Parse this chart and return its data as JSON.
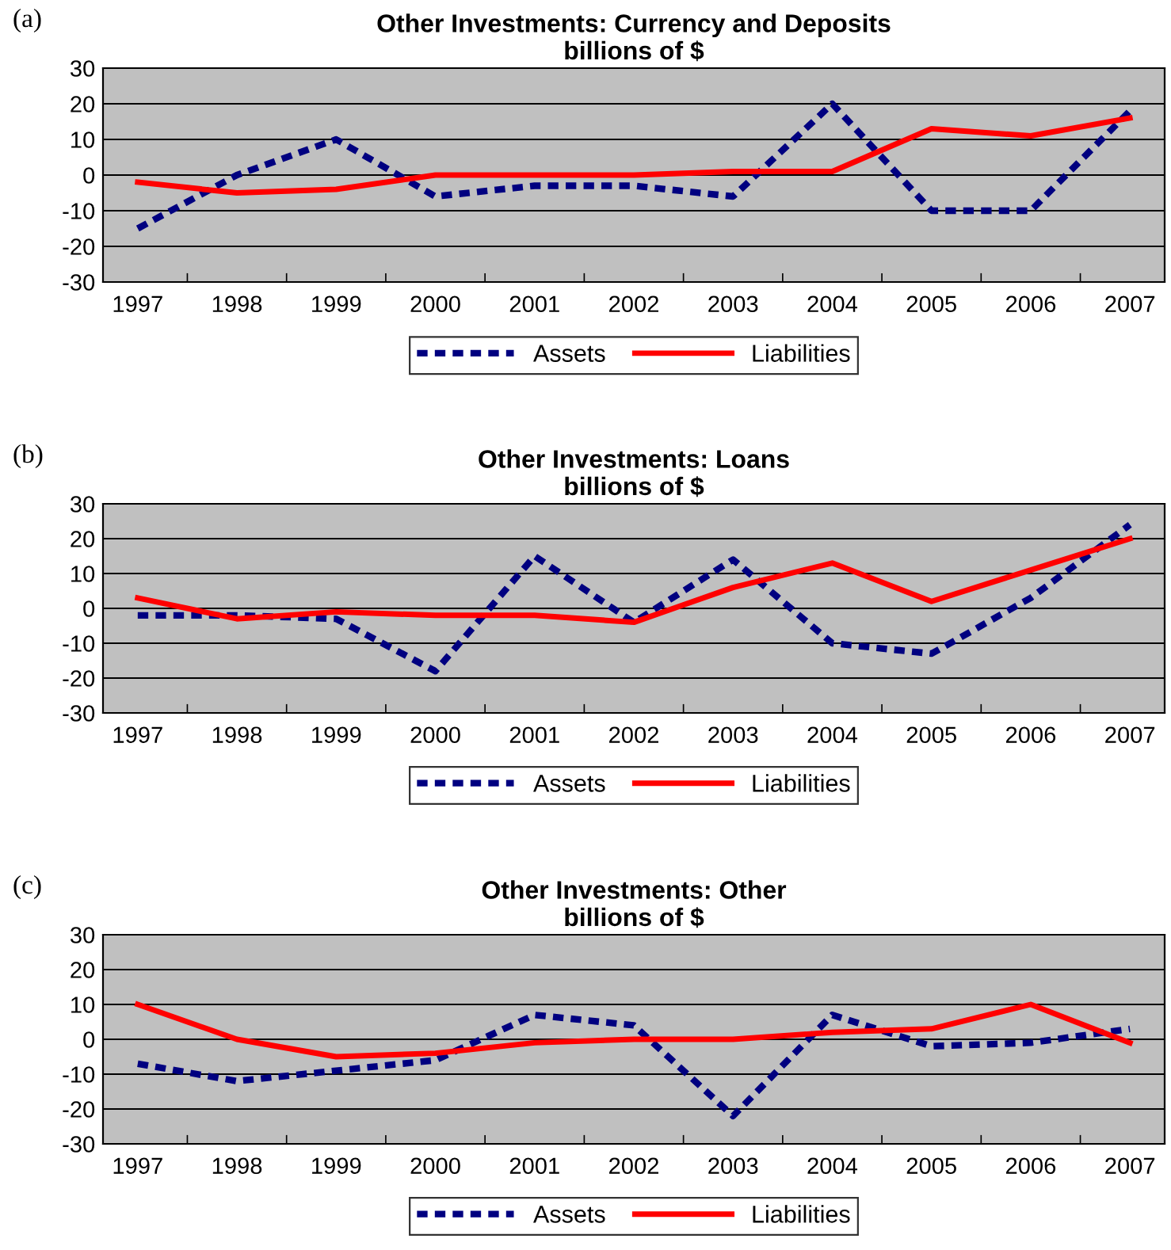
{
  "chart_data": [
    {
      "type": "line",
      "title": "Other Investments: Currency and Deposits\nbillions of $",
      "annotations": [
        "(a)"
      ],
      "categories": [
        "1997",
        "1998",
        "1999",
        "2000",
        "2001",
        "2002",
        "2003",
        "2004",
        "2005",
        "2006",
        "2007"
      ],
      "ylim": [
        -30,
        30
      ],
      "yticks": [
        -30,
        -20,
        -10,
        0,
        10,
        20,
        30
      ],
      "grid": "y",
      "legend": "bottom",
      "marker": "none",
      "series": [
        {
          "name": "Assets",
          "color": "#000080",
          "line_style": "dashed",
          "values": [
            -15,
            0,
            10,
            -6,
            -3,
            -3,
            -6,
            20,
            -10,
            -10,
            18
          ]
        },
        {
          "name": "Liabilities",
          "color": "#ff0000",
          "line_style": "solid",
          "values": [
            -2,
            -5,
            -4,
            0,
            0,
            0,
            1,
            1,
            13,
            11,
            16
          ]
        }
      ]
    },
    {
      "type": "line",
      "title": "Other Investments: Loans\nbillions of $",
      "annotations": [
        "(b)"
      ],
      "categories": [
        "1997",
        "1998",
        "1999",
        "2000",
        "2001",
        "2002",
        "2003",
        "2004",
        "2005",
        "2006",
        "2007"
      ],
      "ylim": [
        -30,
        30
      ],
      "yticks": [
        -30,
        -20,
        -10,
        0,
        10,
        20,
        30
      ],
      "grid": "y",
      "legend": "bottom",
      "marker": "none",
      "series": [
        {
          "name": "Assets",
          "color": "#000080",
          "line_style": "dashed",
          "values": [
            -2,
            -2,
            -3,
            -18,
            15,
            -4,
            14,
            -10,
            -13,
            3,
            24
          ]
        },
        {
          "name": "Liabilities",
          "color": "#ff0000",
          "line_style": "solid",
          "values": [
            3,
            -3,
            -1,
            -2,
            -2,
            -4,
            6,
            13,
            2,
            11,
            20
          ]
        }
      ]
    },
    {
      "type": "line",
      "title": "Other Investments: Other\nbillions of $",
      "annotations": [
        "(c)"
      ],
      "categories": [
        "1997",
        "1998",
        "1999",
        "2000",
        "2001",
        "2002",
        "2003",
        "2004",
        "2005",
        "2006",
        "2007"
      ],
      "ylim": [
        -30,
        30
      ],
      "yticks": [
        -30,
        -20,
        -10,
        0,
        10,
        20,
        30
      ],
      "grid": "y",
      "legend": "bottom",
      "marker": "none",
      "series": [
        {
          "name": "Assets",
          "color": "#000080",
          "line_style": "dashed",
          "values": [
            -7,
            -12,
            -9,
            -6,
            7,
            4,
            -22,
            7,
            -2,
            -1,
            3
          ]
        },
        {
          "name": "Liabilities",
          "color": "#ff0000",
          "line_style": "solid",
          "values": [
            10,
            0,
            -5,
            -4,
            -1,
            0,
            0,
            2,
            3,
            10,
            -1
          ]
        }
      ]
    }
  ]
}
